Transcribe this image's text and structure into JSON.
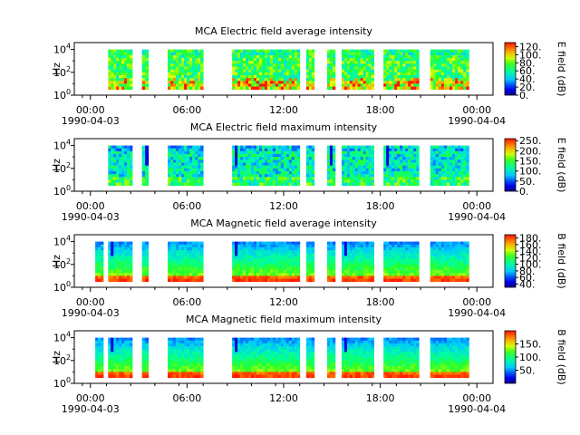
{
  "chart_data": [
    {
      "type": "heatmap",
      "title": "MCA  Electric field average intensity",
      "ylabel": "Hz",
      "yscale": "log",
      "ylim": [
        1,
        40000
      ],
      "y_ticks": [
        "10",
        "10",
        "10"
      ],
      "y_tick_exponents": [
        "0",
        "2",
        "4"
      ],
      "x_ticks": [
        "00:00",
        "06:00",
        "12:00",
        "18:00",
        "00:00"
      ],
      "x_tick_dates": [
        "1990-04-03",
        "",
        "",
        "",
        "1990-04-04"
      ],
      "xlim": [
        "1990-04-03 00:00",
        "1990-04-04 00:00"
      ],
      "colorbar": {
        "label": "E field (dB)",
        "ticks": [
          "0.",
          "20.",
          "40.",
          "60.",
          "80.",
          "100.",
          "120."
        ],
        "range": [
          0,
          130
        ],
        "colormap": "rainbow"
      },
      "data_intervals_hours": [
        [
          1.1,
          2.6
        ],
        [
          3.2,
          3.6
        ],
        [
          4.8,
          7.0
        ],
        [
          8.8,
          13.0
        ],
        [
          13.4,
          13.9
        ],
        [
          14.7,
          15.2
        ],
        [
          15.6,
          17.6
        ],
        [
          18.2,
          20.4
        ],
        [
          21.1,
          23.5
        ]
      ],
      "mean_level": 0.55
    },
    {
      "type": "heatmap",
      "title": "MCA  Electric field maximum intensity",
      "ylabel": "Hz",
      "yscale": "log",
      "ylim": [
        1,
        40000
      ],
      "y_ticks": [
        "10",
        "10",
        "10"
      ],
      "y_tick_exponents": [
        "0",
        "2",
        "4"
      ],
      "x_ticks": [
        "00:00",
        "06:00",
        "12:00",
        "18:00",
        "00:00"
      ],
      "x_tick_dates": [
        "1990-04-03",
        "",
        "",
        "",
        "1990-04-04"
      ],
      "xlim": [
        "1990-04-03 00:00",
        "1990-04-04 00:00"
      ],
      "colorbar": {
        "label": "E field (dB)",
        "ticks": [
          "0.",
          "50.",
          "100.",
          "150.",
          "200.",
          "250."
        ],
        "range": [
          0,
          260
        ],
        "colormap": "rainbow"
      },
      "data_intervals_hours": [
        [
          1.1,
          2.6
        ],
        [
          3.2,
          3.6
        ],
        [
          4.8,
          7.0
        ],
        [
          8.8,
          13.0
        ],
        [
          13.4,
          13.9
        ],
        [
          14.7,
          15.2
        ],
        [
          15.6,
          17.6
        ],
        [
          18.2,
          20.4
        ],
        [
          21.1,
          23.5
        ]
      ],
      "mean_level": 0.4
    },
    {
      "type": "heatmap",
      "title": "MCA  Magnetic field average intensity",
      "ylabel": "Hz",
      "yscale": "log",
      "ylim": [
        1,
        40000
      ],
      "y_ticks": [
        "10",
        "10",
        "10"
      ],
      "y_tick_exponents": [
        "0",
        "2",
        "4"
      ],
      "x_ticks": [
        "00:00",
        "06:00",
        "12:00",
        "18:00",
        "00:00"
      ],
      "x_tick_dates": [
        "1990-04-03",
        "",
        "",
        "",
        "1990-04-04"
      ],
      "xlim": [
        "1990-04-03 00:00",
        "1990-04-04 00:00"
      ],
      "colorbar": {
        "label": "B field (dB)",
        "ticks": [
          "40.",
          "60.",
          "80.",
          "100.",
          "120.",
          "140.",
          "160.",
          "180."
        ],
        "range": [
          30,
          190
        ],
        "colormap": "rainbow"
      },
      "data_intervals_hours": [
        [
          0.3,
          0.8
        ],
        [
          1.1,
          2.6
        ],
        [
          3.2,
          3.6
        ],
        [
          4.8,
          7.0
        ],
        [
          8.8,
          13.0
        ],
        [
          13.4,
          13.9
        ],
        [
          14.7,
          15.2
        ],
        [
          15.6,
          17.6
        ],
        [
          18.2,
          20.4
        ],
        [
          21.1,
          23.5
        ]
      ],
      "mean_level": 0.5
    },
    {
      "type": "heatmap",
      "title": "MCA  Magnetic field maximum intensity",
      "ylabel": "Hz",
      "yscale": "log",
      "ylim": [
        1,
        40000
      ],
      "y_ticks": [
        "10",
        "10",
        "10"
      ],
      "y_tick_exponents": [
        "0",
        "2",
        "4"
      ],
      "x_ticks": [
        "00:00",
        "06:00",
        "12:00",
        "18:00",
        "00:00"
      ],
      "x_tick_dates": [
        "1990-04-03",
        "",
        "",
        "",
        "1990-04-04"
      ],
      "xlim": [
        "1990-04-03 00:00",
        "1990-04-04 00:00"
      ],
      "colorbar": {
        "label": "B field (dB)",
        "ticks": [
          "50.",
          "100.",
          "150."
        ],
        "range": [
          0,
          200
        ],
        "colormap": "rainbow"
      },
      "data_intervals_hours": [
        [
          0.3,
          0.8
        ],
        [
          1.1,
          2.6
        ],
        [
          3.2,
          3.6
        ],
        [
          4.8,
          7.0
        ],
        [
          8.8,
          13.0
        ],
        [
          13.4,
          13.9
        ],
        [
          14.7,
          15.2
        ],
        [
          15.6,
          17.6
        ],
        [
          18.2,
          20.4
        ],
        [
          21.1,
          23.5
        ]
      ],
      "mean_level": 0.5
    }
  ]
}
